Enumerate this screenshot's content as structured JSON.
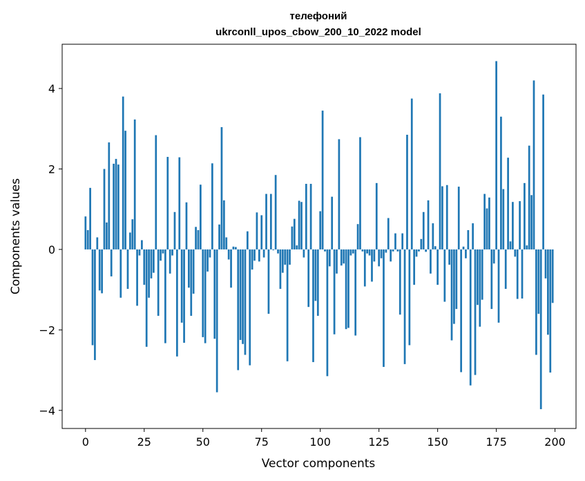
{
  "chart_data": {
    "type": "bar",
    "title": "телефоний",
    "subtitle": "ukrconll_upos_cbow_200_10_2022 model",
    "xlabel": "Vector components",
    "ylabel": "Components values",
    "xlim": [
      -9.95,
      208.95
    ],
    "ylim": [
      -4.45,
      5.1
    ],
    "x_ticks": [
      0,
      25,
      50,
      75,
      100,
      125,
      150,
      175,
      200
    ],
    "x_tick_labels": [
      "0",
      "25",
      "50",
      "75",
      "100",
      "125",
      "150",
      "175",
      "200"
    ],
    "y_ticks": [
      -4,
      -2,
      0,
      2,
      4
    ],
    "y_tick_labels": [
      "−4",
      "−2",
      "0",
      "2",
      "4"
    ],
    "grid": false,
    "bar_color": "#1f77b4",
    "series": [
      {
        "values": [
          0.82,
          0.48,
          1.53,
          -2.38,
          -2.75,
          0.3,
          -1.02,
          -1.09,
          2.0,
          0.67,
          2.66,
          -0.67,
          2.13,
          2.25,
          2.11,
          -1.2,
          3.8,
          2.95,
          -0.98,
          0.42,
          0.75,
          3.23,
          -1.4,
          -0.15,
          0.23,
          -0.88,
          -2.42,
          -1.2,
          -0.72,
          -0.58,
          2.84,
          -1.65,
          -0.28,
          -0.1,
          -2.33,
          2.3,
          -0.6,
          -0.15,
          0.93,
          -2.66,
          2.29,
          -1.82,
          -2.32,
          1.17,
          -0.95,
          -1.65,
          -1.1,
          0.56,
          0.48,
          1.61,
          -2.18,
          -2.33,
          -0.55,
          -0.2,
          2.14,
          -2.22,
          -3.55,
          0.62,
          3.04,
          1.22,
          0.3,
          -0.25,
          -0.95,
          0.07,
          0.06,
          -3.0,
          -2.25,
          -2.35,
          -2.62,
          0.45,
          -2.88,
          -0.5,
          -0.28,
          0.92,
          -0.3,
          0.85,
          -0.2,
          1.38,
          -1.6,
          1.38,
          -0.02,
          1.85,
          -0.1,
          -0.98,
          -0.58,
          -0.38,
          -2.78,
          -0.38,
          0.57,
          0.76,
          0.1,
          1.21,
          1.18,
          -0.2,
          1.63,
          -1.43,
          1.63,
          -2.8,
          -1.28,
          -1.65,
          0.95,
          3.45,
          -0.05,
          -3.15,
          -0.42,
          1.31,
          -2.11,
          -0.6,
          2.74,
          -0.4,
          -0.35,
          -1.98,
          -1.95,
          -0.15,
          -0.1,
          -2.14,
          0.63,
          2.79,
          -0.05,
          -0.92,
          -0.1,
          -0.15,
          -0.8,
          -0.3,
          1.65,
          -0.42,
          -0.22,
          -2.92,
          -0.08,
          0.78,
          -0.3,
          -0.05,
          0.4,
          -0.05,
          -1.62,
          0.4,
          -2.85,
          2.85,
          -2.38,
          3.75,
          -0.88,
          -0.18,
          -0.05,
          0.26,
          0.93,
          -0.06,
          1.22,
          -0.6,
          0.65,
          0.08,
          -0.88,
          3.88,
          1.57,
          -1.3,
          1.6,
          -0.38,
          -2.26,
          -1.85,
          -1.48,
          1.56,
          -3.05,
          0.07,
          -0.22,
          0.48,
          -3.38,
          0.65,
          -3.12,
          -1.38,
          -1.92,
          -1.25,
          1.38,
          1.02,
          1.29,
          -1.48,
          -0.35,
          4.68,
          -1.82,
          3.3,
          1.5,
          -0.98,
          2.28,
          0.2,
          1.18,
          -0.18,
          -1.23,
          1.2,
          -1.22,
          1.65,
          0.1,
          2.58,
          1.35,
          4.2,
          -2.62,
          -1.6,
          -3.97,
          3.85,
          -0.72,
          -2.12,
          -3.06,
          -1.33
        ]
      }
    ]
  }
}
